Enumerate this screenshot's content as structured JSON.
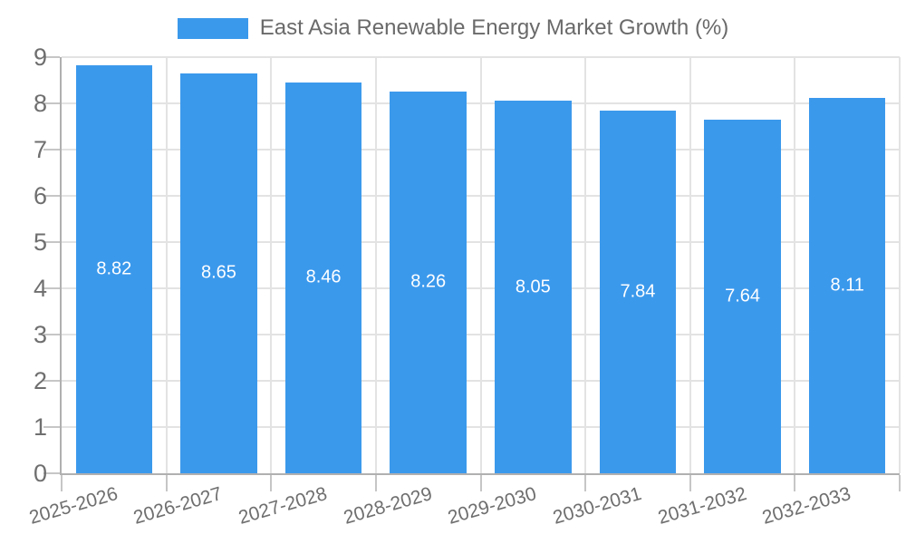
{
  "chart_data": {
    "type": "bar",
    "title": "East Asia Renewable Energy Market Growth (%)",
    "legend": {
      "label": "East Asia Renewable Energy Market Growth (%)",
      "position": "top"
    },
    "categories": [
      "2025-2026",
      "2026-2027",
      "2027-2028",
      "2028-2029",
      "2029-2030",
      "2030-2031",
      "2031-2032",
      "2032-2033"
    ],
    "values": [
      8.82,
      8.65,
      8.46,
      8.26,
      8.05,
      7.84,
      7.64,
      8.11
    ],
    "value_label_decimals": 2,
    "xlabel": "",
    "ylabel": "",
    "ylim": [
      0,
      9
    ],
    "yticks": [
      0,
      1,
      2,
      3,
      4,
      5,
      6,
      7,
      8,
      9
    ],
    "grid": true,
    "x_tick_label_rotation_deg": -16,
    "colors": {
      "bar": "#3b99ec",
      "value_label": "#ffffff",
      "axis": "#b0b0b0",
      "gridline": "#e3e3e3",
      "tick": "#c6c6c6",
      "tick_label": "#6f6f6f",
      "legend_text": "#6a6a6a",
      "background": "#ffffff"
    }
  }
}
